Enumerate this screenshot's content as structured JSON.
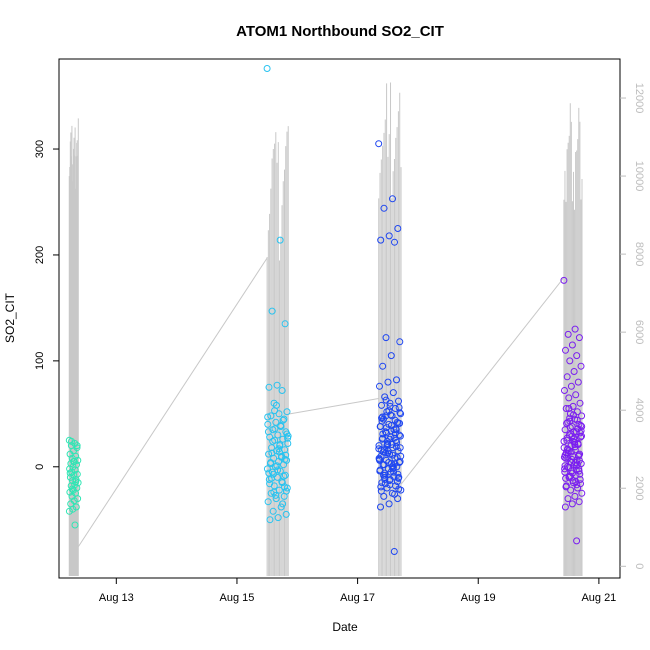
{
  "chart_data": {
    "type": "scatter",
    "title": "ATOM1 Northbound SO2_CIT",
    "xlabel": "Date",
    "ylabel": "SO2_CIT",
    "x_ticks": [
      "Aug 13",
      "Aug 15",
      "Aug 17",
      "Aug 19",
      "Aug 21"
    ],
    "y_ticks": [
      "0",
      "100",
      "200",
      "300"
    ],
    "y2_ticks": [
      "0",
      "2000",
      "4000",
      "6000",
      "8000",
      "10000",
      "12000"
    ],
    "xlim_days": [
      12.05,
      21.35
    ],
    "ylim": [
      -105,
      385
    ],
    "y2lim": [
      -300,
      13000
    ],
    "grid": false,
    "colors": {
      "altitude_line": "#c8c8c8",
      "series": [
        "#2ee6b4",
        "#28c3f0",
        "#1e46f0",
        "#7a1ef0"
      ]
    },
    "series": [
      {
        "date": "Aug 12",
        "x_days": [
          12.22,
          12.37
        ],
        "alt_base": [
          200,
          500
        ],
        "alt_peaks": [
          10000,
          10600,
          11000,
          11200,
          10800,
          11500
        ],
        "so2": [
          25,
          22,
          20,
          18,
          15,
          12,
          10,
          8,
          6,
          5,
          3,
          2,
          0,
          -2,
          -3,
          -5,
          -7,
          -8,
          -10,
          -12,
          -13,
          -15,
          -17,
          -18,
          -20,
          -22,
          -24,
          -25,
          -28,
          -30,
          -32,
          -35,
          -38,
          -40,
          -42,
          -55,
          24,
          20,
          5,
          -6,
          -14,
          -21
        ]
      },
      {
        "date": "Aug 15",
        "x_days": [
          15.5,
          15.85
        ],
        "alt_base": [
          7900,
          3900
        ],
        "alt_peaks": [
          8200,
          8800,
          9400,
          10000,
          10500,
          10900,
          11200,
          11400,
          10600,
          11100
        ],
        "so2": [
          376,
          214,
          147,
          135,
          77,
          75,
          72,
          60,
          52,
          50,
          48,
          45,
          42,
          40,
          38,
          35,
          33,
          30,
          28,
          26,
          25,
          22,
          20,
          18,
          16,
          15,
          12,
          10,
          8,
          6,
          5,
          3,
          2,
          0,
          -2,
          -4,
          -5,
          -8,
          -10,
          -12,
          -15,
          -18,
          -20,
          -22,
          -25,
          -28,
          -30,
          -33,
          -38,
          -42,
          -45,
          -48,
          -50,
          44,
          36,
          29,
          21,
          13,
          7,
          1,
          -6,
          -14,
          -24,
          31,
          17,
          4,
          -9,
          -27,
          47,
          39,
          24,
          11,
          -3,
          -16,
          -35,
          53,
          27,
          14,
          -11,
          -19,
          58,
          33,
          9,
          -7,
          -23
        ]
      },
      {
        "date": "Aug 17",
        "x_days": [
          17.35,
          17.72
        ],
        "alt_base": [
          4300,
          2100
        ],
        "alt_peaks": [
          9600,
          10200,
          10800,
          11000,
          11400,
          11800,
          12400,
          10600,
          11300,
          12600
        ],
        "so2": [
          305,
          253,
          244,
          225,
          218,
          214,
          212,
          122,
          118,
          105,
          95,
          82,
          80,
          76,
          70,
          66,
          62,
          60,
          58,
          55,
          52,
          50,
          48,
          45,
          42,
          40,
          38,
          35,
          33,
          30,
          28,
          26,
          25,
          22,
          20,
          18,
          16,
          15,
          12,
          10,
          8,
          6,
          5,
          3,
          2,
          0,
          -2,
          -4,
          -5,
          -8,
          -10,
          -12,
          -15,
          -18,
          -20,
          -22,
          -25,
          -28,
          -30,
          -35,
          -38,
          -80,
          48,
          41,
          34,
          27,
          19,
          13,
          7,
          1,
          -6,
          -11,
          -17,
          -23,
          44,
          37,
          29,
          21,
          14,
          9,
          4,
          -3,
          -9,
          -16,
          56,
          49,
          43,
          36,
          24,
          17,
          11,
          2,
          -7,
          -13,
          -19,
          -26,
          63,
          51,
          39,
          31,
          23,
          15,
          6,
          -1,
          -12,
          -21,
          57,
          46,
          32,
          20,
          10,
          0,
          -8,
          -14,
          53,
          38,
          27,
          13,
          4,
          -5,
          47,
          35,
          21,
          8,
          -2,
          -10,
          41,
          26,
          16,
          3,
          32,
          18
        ]
      },
      {
        "date": "Aug 20",
        "x_days": [
          20.42,
          20.72
        ],
        "alt_base": [
          7400,
          1900
        ],
        "alt_peaks": [
          9600,
          10200,
          9500,
          10800,
          11000,
          11200,
          12000,
          11600
        ],
        "so2": [
          176,
          130,
          125,
          122,
          115,
          110,
          105,
          100,
          95,
          90,
          85,
          80,
          76,
          72,
          68,
          65,
          60,
          57,
          55,
          52,
          50,
          48,
          45,
          42,
          40,
          38,
          35,
          33,
          30,
          28,
          26,
          25,
          22,
          20,
          18,
          16,
          15,
          12,
          10,
          8,
          6,
          5,
          3,
          2,
          0,
          -2,
          -4,
          -5,
          -8,
          -10,
          -12,
          -15,
          -18,
          -20,
          -22,
          -25,
          -28,
          -30,
          -33,
          -35,
          -38,
          -70,
          46,
          39,
          33,
          27,
          21,
          14,
          9,
          4,
          -1,
          -7,
          -13,
          -19,
          44,
          37,
          29,
          23,
          17,
          11,
          7,
          1,
          -3,
          -9,
          -16,
          49,
          41,
          36,
          31,
          24,
          19,
          13,
          6,
          -6,
          -11,
          -17,
          43,
          34,
          27,
          16,
          10,
          4,
          -2,
          -14,
          55,
          32,
          24,
          13,
          2,
          -9,
          38,
          21,
          8,
          -4,
          29,
          11,
          1
        ]
      }
    ]
  }
}
